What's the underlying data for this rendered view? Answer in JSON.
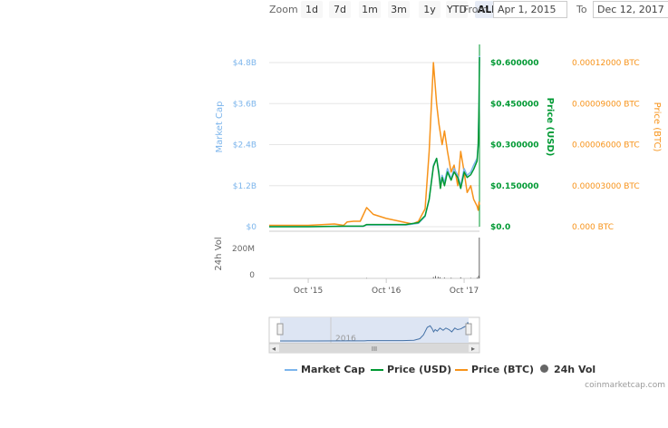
{
  "zoom": {
    "label": "Zoom",
    "buttons": [
      "1d",
      "7d",
      "1m",
      "3m",
      "1y",
      "YTD",
      "ALL"
    ],
    "active": "ALL"
  },
  "range": {
    "from_label": "From",
    "from_value": "Apr 1, 2015",
    "to_label": "To",
    "to_value": "Dec 12, 2017"
  },
  "credit": "coinmarketcap.com",
  "colors": {
    "market_cap": "#7cb5ec",
    "price_usd": "#009933",
    "price_btc": "#f7931a",
    "volume": "#666666"
  },
  "chart_data": {
    "type": "line",
    "x_start": "Apr 2015",
    "x_end": "Dec 2017",
    "x_ticks": [
      "Oct '15",
      "Oct '16",
      "Oct '17"
    ],
    "axes": {
      "market_cap": {
        "label": "Market Cap",
        "ticks": [
          "$0",
          "$1.2B",
          "$2.4B",
          "$3.6B",
          "$4.8B"
        ],
        "range": [
          0,
          4.8
        ]
      },
      "price_usd": {
        "label": "Price (USD)",
        "ticks": [
          "$0.0",
          "$0.150000",
          "$0.300000",
          "$0.450000",
          "$0.600000"
        ],
        "range": [
          0,
          0.6
        ]
      },
      "price_btc": {
        "label": "Price (BTC)",
        "ticks": [
          "0.000 BTC",
          "0.00003000 BTC",
          "0.00006000 BTC",
          "0.00009000 BTC",
          "0.00012000 BTC"
        ],
        "range": [
          0,
          0.00012
        ]
      },
      "volume": {
        "label": "24h Vol",
        "ticks": [
          "0",
          "200M"
        ],
        "range": [
          0,
          300
        ]
      }
    },
    "series": [
      {
        "name": "Market Cap",
        "axis": "market_cap",
        "x": [
          "2015-04-01",
          "2015-10-01",
          "2016-04-01",
          "2016-06-15",
          "2016-07-01",
          "2016-10-01",
          "2017-01-01",
          "2017-03-01",
          "2017-04-01",
          "2017-04-20",
          "2017-05-10",
          "2017-05-25",
          "2017-06-05",
          "2017-06-12",
          "2017-06-20",
          "2017-07-01",
          "2017-07-15",
          "2017-08-01",
          "2017-08-15",
          "2017-09-01",
          "2017-09-15",
          "2017-10-01",
          "2017-10-15",
          "2017-11-01",
          "2017-11-15",
          "2017-12-01",
          "2017-12-06",
          "2017-12-10",
          "2017-12-12"
        ],
        "values": [
          0,
          0,
          0.01,
          0.01,
          0.05,
          0.05,
          0.05,
          0.1,
          0.3,
          0.8,
          1.8,
          2.0,
          1.6,
          1.2,
          1.5,
          1.3,
          1.7,
          1.4,
          1.7,
          1.5,
          1.2,
          1.7,
          1.5,
          1.6,
          1.8,
          2.0,
          2.4,
          3.5,
          5.0
        ]
      },
      {
        "name": "Price (USD)",
        "axis": "price_usd",
        "x": [
          "2015-04-01",
          "2015-10-01",
          "2016-04-01",
          "2016-06-15",
          "2016-07-01",
          "2016-10-01",
          "2017-01-01",
          "2017-03-01",
          "2017-04-01",
          "2017-04-20",
          "2017-05-10",
          "2017-05-25",
          "2017-06-05",
          "2017-06-12",
          "2017-06-20",
          "2017-07-01",
          "2017-07-15",
          "2017-08-01",
          "2017-08-15",
          "2017-09-01",
          "2017-09-15",
          "2017-10-01",
          "2017-10-15",
          "2017-11-01",
          "2017-11-15",
          "2017-12-01",
          "2017-12-06",
          "2017-12-10",
          "2017-12-12"
        ],
        "values": [
          0,
          0,
          0.002,
          0.002,
          0.008,
          0.008,
          0.008,
          0.015,
          0.04,
          0.1,
          0.22,
          0.25,
          0.19,
          0.14,
          0.18,
          0.15,
          0.2,
          0.17,
          0.2,
          0.18,
          0.14,
          0.2,
          0.18,
          0.19,
          0.21,
          0.24,
          0.3,
          0.45,
          0.62
        ]
      },
      {
        "name": "Price (BTC)",
        "axis": "price_btc",
        "x": [
          "2015-04-01",
          "2015-10-01",
          "2016-02-01",
          "2016-03-15",
          "2016-04-01",
          "2016-05-01",
          "2016-06-01",
          "2016-07-01",
          "2016-08-01",
          "2016-10-01",
          "2017-01-01",
          "2017-02-01",
          "2017-03-01",
          "2017-04-01",
          "2017-04-20",
          "2017-05-10",
          "2017-05-25",
          "2017-06-05",
          "2017-06-20",
          "2017-07-01",
          "2017-07-15",
          "2017-08-01",
          "2017-08-15",
          "2017-09-01",
          "2017-09-15",
          "2017-10-01",
          "2017-10-15",
          "2017-11-01",
          "2017-11-15",
          "2017-12-01",
          "2017-12-06",
          "2017-12-10",
          "2017-12-12"
        ],
        "values": [
          1e-06,
          1e-06,
          2e-06,
          1e-06,
          3.5e-06,
          4e-06,
          4e-06,
          1.4e-05,
          9e-06,
          6e-06,
          3e-06,
          2e-06,
          4e-06,
          1.3e-05,
          5.5e-05,
          0.00012,
          9e-05,
          7.5e-05,
          6e-05,
          7e-05,
          5.5e-05,
          4e-05,
          4.5e-05,
          3e-05,
          5.5e-05,
          4e-05,
          2.5e-05,
          3e-05,
          2e-05,
          1.5e-05,
          1.2e-05,
          1.8e-05,
          1.6e-05
        ]
      },
      {
        "name": "24h Vol",
        "axis": "volume",
        "type": "bar",
        "x": [
          "2016-07-01",
          "2017-05-10",
          "2017-05-20",
          "2017-06-01",
          "2017-06-10",
          "2017-07-01",
          "2017-08-01",
          "2017-09-15",
          "2017-11-01",
          "2017-12-01",
          "2017-12-08",
          "2017-12-11"
        ],
        "values": [
          3,
          10,
          18,
          12,
          8,
          6,
          5,
          8,
          4,
          6,
          20,
          300
        ]
      }
    ]
  }
}
